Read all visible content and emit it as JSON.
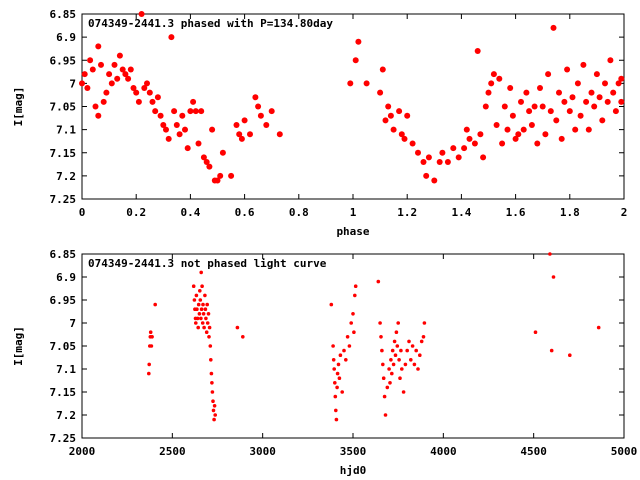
{
  "colors": {
    "points": "#ff0000",
    "frame": "#000000"
  },
  "chart_data": [
    {
      "type": "scatter",
      "title": "074349-2441.3 phased with P=134.80day",
      "xlabel": "phase",
      "ylabel": "I[mag]",
      "xlim": [
        0,
        2
      ],
      "ylim": [
        6.85,
        7.25
      ],
      "y_inverted": true,
      "grid": false,
      "marker": "filled-circle",
      "xticks": [
        "0",
        "0.2",
        "0.4",
        "0.6",
        "0.8",
        "1",
        "1.2",
        "1.4",
        "1.6",
        "1.8",
        "2"
      ],
      "yticks": [
        "6.85",
        "6.9",
        "6.95",
        "7",
        "7.05",
        "7.1",
        "7.15",
        "7.2",
        "7.25"
      ],
      "points": [
        [
          0.0,
          7.0
        ],
        [
          0.01,
          6.98
        ],
        [
          0.02,
          7.01
        ],
        [
          0.03,
          6.95
        ],
        [
          0.04,
          6.97
        ],
        [
          0.05,
          7.05
        ],
        [
          0.06,
          7.07
        ],
        [
          0.06,
          6.92
        ],
        [
          0.07,
          6.96
        ],
        [
          0.08,
          7.04
        ],
        [
          0.09,
          7.02
        ],
        [
          0.1,
          6.98
        ],
        [
          0.11,
          7.0
        ],
        [
          0.12,
          6.96
        ],
        [
          0.13,
          6.99
        ],
        [
          0.14,
          6.94
        ],
        [
          0.15,
          6.97
        ],
        [
          0.16,
          6.98
        ],
        [
          0.17,
          6.99
        ],
        [
          0.18,
          6.97
        ],
        [
          0.19,
          7.01
        ],
        [
          0.2,
          7.02
        ],
        [
          0.21,
          7.04
        ],
        [
          0.22,
          6.85
        ],
        [
          0.23,
          7.01
        ],
        [
          0.24,
          7.0
        ],
        [
          0.25,
          7.02
        ],
        [
          0.26,
          7.04
        ],
        [
          0.27,
          7.06
        ],
        [
          0.28,
          7.03
        ],
        [
          0.29,
          7.07
        ],
        [
          0.3,
          7.09
        ],
        [
          0.31,
          7.1
        ],
        [
          0.32,
          7.12
        ],
        [
          0.33,
          6.9
        ],
        [
          0.34,
          7.06
        ],
        [
          0.35,
          7.09
        ],
        [
          0.36,
          7.11
        ],
        [
          0.37,
          7.07
        ],
        [
          0.38,
          7.1
        ],
        [
          0.39,
          7.14
        ],
        [
          0.4,
          7.06
        ],
        [
          0.41,
          7.04
        ],
        [
          0.42,
          7.06
        ],
        [
          0.43,
          7.13
        ],
        [
          0.44,
          7.06
        ],
        [
          0.45,
          7.16
        ],
        [
          0.46,
          7.17
        ],
        [
          0.47,
          7.18
        ],
        [
          0.48,
          7.1
        ],
        [
          0.49,
          7.21
        ],
        [
          0.5,
          7.21
        ],
        [
          0.51,
          7.2
        ],
        [
          0.52,
          7.15
        ],
        [
          0.55,
          7.2
        ],
        [
          0.57,
          7.09
        ],
        [
          0.58,
          7.11
        ],
        [
          0.59,
          7.12
        ],
        [
          0.6,
          7.08
        ],
        [
          0.62,
          7.11
        ],
        [
          0.64,
          7.03
        ],
        [
          0.65,
          7.05
        ],
        [
          0.66,
          7.07
        ],
        [
          0.68,
          7.09
        ],
        [
          0.7,
          7.06
        ],
        [
          0.73,
          7.11
        ],
        [
          0.99,
          7.0
        ],
        [
          1.01,
          6.95
        ],
        [
          1.02,
          6.91
        ],
        [
          1.05,
          7.0
        ],
        [
          1.1,
          7.02
        ],
        [
          1.11,
          6.97
        ],
        [
          1.12,
          7.08
        ],
        [
          1.13,
          7.05
        ],
        [
          1.14,
          7.07
        ],
        [
          1.15,
          7.1
        ],
        [
          1.17,
          7.06
        ],
        [
          1.18,
          7.11
        ],
        [
          1.19,
          7.12
        ],
        [
          1.2,
          7.07
        ],
        [
          1.22,
          7.13
        ],
        [
          1.24,
          7.15
        ],
        [
          1.26,
          7.17
        ],
        [
          1.27,
          7.2
        ],
        [
          1.28,
          7.16
        ],
        [
          1.3,
          7.21
        ],
        [
          1.32,
          7.17
        ],
        [
          1.33,
          7.15
        ],
        [
          1.35,
          7.17
        ],
        [
          1.37,
          7.14
        ],
        [
          1.39,
          7.16
        ],
        [
          1.41,
          7.14
        ],
        [
          1.42,
          7.1
        ],
        [
          1.43,
          7.12
        ],
        [
          1.45,
          7.13
        ],
        [
          1.46,
          6.93
        ],
        [
          1.47,
          7.11
        ],
        [
          1.48,
          7.16
        ],
        [
          1.49,
          7.05
        ],
        [
          1.5,
          7.02
        ],
        [
          1.51,
          7.0
        ],
        [
          1.52,
          6.98
        ],
        [
          1.53,
          7.09
        ],
        [
          1.54,
          6.99
        ],
        [
          1.55,
          7.13
        ],
        [
          1.56,
          7.05
        ],
        [
          1.57,
          7.1
        ],
        [
          1.58,
          7.01
        ],
        [
          1.59,
          7.07
        ],
        [
          1.6,
          7.12
        ],
        [
          1.61,
          7.11
        ],
        [
          1.62,
          7.04
        ],
        [
          1.63,
          7.1
        ],
        [
          1.64,
          7.02
        ],
        [
          1.65,
          7.06
        ],
        [
          1.66,
          7.09
        ],
        [
          1.67,
          7.05
        ],
        [
          1.68,
          7.13
        ],
        [
          1.69,
          7.01
        ],
        [
          1.7,
          7.05
        ],
        [
          1.71,
          7.11
        ],
        [
          1.72,
          6.98
        ],
        [
          1.73,
          7.06
        ],
        [
          1.74,
          6.88
        ],
        [
          1.75,
          7.08
        ],
        [
          1.76,
          7.02
        ],
        [
          1.77,
          7.12
        ],
        [
          1.78,
          7.04
        ],
        [
          1.79,
          6.97
        ],
        [
          1.8,
          7.06
        ],
        [
          1.81,
          7.03
        ],
        [
          1.82,
          7.1
        ],
        [
          1.83,
          7.0
        ],
        [
          1.84,
          7.07
        ],
        [
          1.85,
          6.96
        ],
        [
          1.86,
          7.04
        ],
        [
          1.87,
          7.1
        ],
        [
          1.88,
          7.02
        ],
        [
          1.89,
          7.05
        ],
        [
          1.9,
          6.98
        ],
        [
          1.91,
          7.03
        ],
        [
          1.92,
          7.08
        ],
        [
          1.93,
          7.0
        ],
        [
          1.94,
          7.04
        ],
        [
          1.95,
          6.95
        ],
        [
          1.96,
          7.02
        ],
        [
          1.97,
          7.06
        ],
        [
          1.98,
          7.0
        ],
        [
          1.99,
          6.99
        ],
        [
          1.99,
          7.04
        ]
      ]
    },
    {
      "type": "scatter",
      "title": "074349-2441.3 not phased light curve",
      "xlabel": "hjd0",
      "ylabel": "I[mag]",
      "xlim": [
        2000,
        5000
      ],
      "ylim": [
        6.85,
        7.25
      ],
      "y_inverted": true,
      "grid": false,
      "marker": "dot",
      "xticks": [
        "2000",
        "2500",
        "3000",
        "3500",
        "4000",
        "4500",
        "5000"
      ],
      "yticks": [
        "6.85",
        "6.9",
        "6.95",
        "7",
        "7.05",
        "7.1",
        "7.15",
        "7.2",
        "7.25"
      ],
      "points": [
        [
          2370,
          7.11
        ],
        [
          2372,
          7.09
        ],
        [
          2375,
          7.05
        ],
        [
          2378,
          7.03
        ],
        [
          2380,
          7.02
        ],
        [
          2384,
          7.05
        ],
        [
          2388,
          7.03
        ],
        [
          2405,
          6.96
        ],
        [
          2618,
          6.92
        ],
        [
          2622,
          6.95
        ],
        [
          2625,
          6.97
        ],
        [
          2628,
          6.99
        ],
        [
          2630,
          7.0
        ],
        [
          2633,
          6.94
        ],
        [
          2636,
          6.97
        ],
        [
          2640,
          6.99
        ],
        [
          2643,
          7.01
        ],
        [
          2646,
          6.96
        ],
        [
          2650,
          6.98
        ],
        [
          2652,
          6.93
        ],
        [
          2655,
          6.95
        ],
        [
          2658,
          6.99
        ],
        [
          2660,
          6.89
        ],
        [
          2662,
          6.97
        ],
        [
          2665,
          6.92
        ],
        [
          2668,
          7.0
        ],
        [
          2670,
          6.96
        ],
        [
          2673,
          6.98
        ],
        [
          2676,
          7.01
        ],
        [
          2680,
          6.94
        ],
        [
          2683,
          6.97
        ],
        [
          2686,
          6.99
        ],
        [
          2690,
          7.02
        ],
        [
          2693,
          6.96
        ],
        [
          2696,
          7.0
        ],
        [
          2700,
          6.98
        ],
        [
          2703,
          7.03
        ],
        [
          2706,
          7.01
        ],
        [
          2710,
          7.05
        ],
        [
          2713,
          7.08
        ],
        [
          2716,
          7.11
        ],
        [
          2719,
          7.13
        ],
        [
          2722,
          7.15
        ],
        [
          2725,
          7.17
        ],
        [
          2728,
          7.19
        ],
        [
          2731,
          7.21
        ],
        [
          2734,
          7.18
        ],
        [
          2737,
          7.2
        ],
        [
          2860,
          7.01
        ],
        [
          2890,
          7.03
        ],
        [
          3380,
          6.96
        ],
        [
          3390,
          7.05
        ],
        [
          3393,
          7.08
        ],
        [
          3396,
          7.1
        ],
        [
          3399,
          7.13
        ],
        [
          3402,
          7.16
        ],
        [
          3405,
          7.19
        ],
        [
          3408,
          7.21
        ],
        [
          3412,
          7.14
        ],
        [
          3415,
          7.11
        ],
        [
          3420,
          7.09
        ],
        [
          3425,
          7.12
        ],
        [
          3430,
          7.07
        ],
        [
          3440,
          7.15
        ],
        [
          3450,
          7.06
        ],
        [
          3460,
          7.08
        ],
        [
          3470,
          7.03
        ],
        [
          3480,
          7.05
        ],
        [
          3490,
          7.0
        ],
        [
          3500,
          6.98
        ],
        [
          3505,
          7.02
        ],
        [
          3510,
          6.94
        ],
        [
          3515,
          6.92
        ],
        [
          3640,
          6.91
        ],
        [
          3650,
          7.0
        ],
        [
          3655,
          7.03
        ],
        [
          3660,
          7.06
        ],
        [
          3665,
          7.09
        ],
        [
          3670,
          7.12
        ],
        [
          3675,
          7.16
        ],
        [
          3680,
          7.2
        ],
        [
          3690,
          7.14
        ],
        [
          3700,
          7.1
        ],
        [
          3705,
          7.13
        ],
        [
          3710,
          7.08
        ],
        [
          3715,
          7.11
        ],
        [
          3720,
          7.06
        ],
        [
          3725,
          7.09
        ],
        [
          3730,
          7.04
        ],
        [
          3735,
          7.07
        ],
        [
          3740,
          7.02
        ],
        [
          3745,
          7.05
        ],
        [
          3750,
          7.0
        ],
        [
          3755,
          7.08
        ],
        [
          3760,
          7.12
        ],
        [
          3765,
          7.06
        ],
        [
          3770,
          7.1
        ],
        [
          3780,
          7.15
        ],
        [
          3790,
          7.09
        ],
        [
          3800,
          7.06
        ],
        [
          3810,
          7.04
        ],
        [
          3820,
          7.08
        ],
        [
          3830,
          7.05
        ],
        [
          3840,
          7.09
        ],
        [
          3850,
          7.06
        ],
        [
          3860,
          7.1
        ],
        [
          3870,
          7.07
        ],
        [
          3880,
          7.04
        ],
        [
          3890,
          7.03
        ],
        [
          3895,
          7.0
        ],
        [
          4510,
          7.02
        ],
        [
          4590,
          6.85
        ],
        [
          4600,
          7.06
        ],
        [
          4610,
          6.9
        ],
        [
          4700,
          7.07
        ],
        [
          4860,
          7.01
        ]
      ]
    }
  ]
}
